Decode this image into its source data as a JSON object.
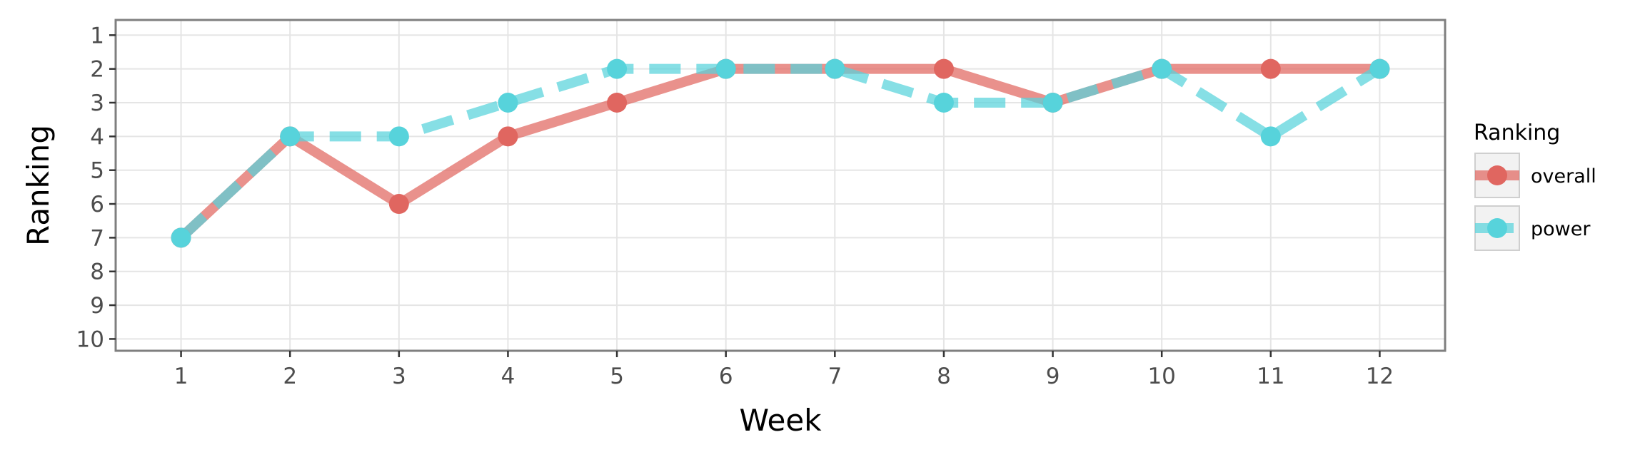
{
  "chart_data": {
    "type": "line",
    "title": "",
    "xlabel": "Week",
    "ylabel": "Ranking",
    "x": [
      1,
      2,
      3,
      4,
      5,
      6,
      7,
      8,
      9,
      10,
      11,
      12
    ],
    "x_ticks": [
      "1",
      "2",
      "3",
      "4",
      "5",
      "6",
      "7",
      "8",
      "9",
      "10",
      "11",
      "12"
    ],
    "xlim": [
      0.4,
      12.6
    ],
    "y_ticks": [
      "1",
      "2",
      "3",
      "4",
      "5",
      "6",
      "7",
      "8",
      "9",
      "10"
    ],
    "ylim": [
      10.35,
      0.55
    ],
    "y_reversed": true,
    "grid": true,
    "legend": {
      "title": "Ranking",
      "placement": "right"
    },
    "series": [
      {
        "name": "overall",
        "values": [
          7,
          4,
          6,
          4,
          3,
          2,
          2,
          2,
          3,
          2,
          2,
          2
        ],
        "color": "#E06660",
        "line_style": "solid"
      },
      {
        "name": "power",
        "values": [
          7,
          4,
          4,
          3,
          2,
          2,
          2,
          3,
          3,
          2,
          4,
          2
        ],
        "color": "#57D3DB",
        "line_style": "dashed"
      }
    ],
    "colors": {
      "panel_border": "#7f7f7f",
      "grid": "#e5e5e5",
      "background": "#ffffff"
    }
  }
}
